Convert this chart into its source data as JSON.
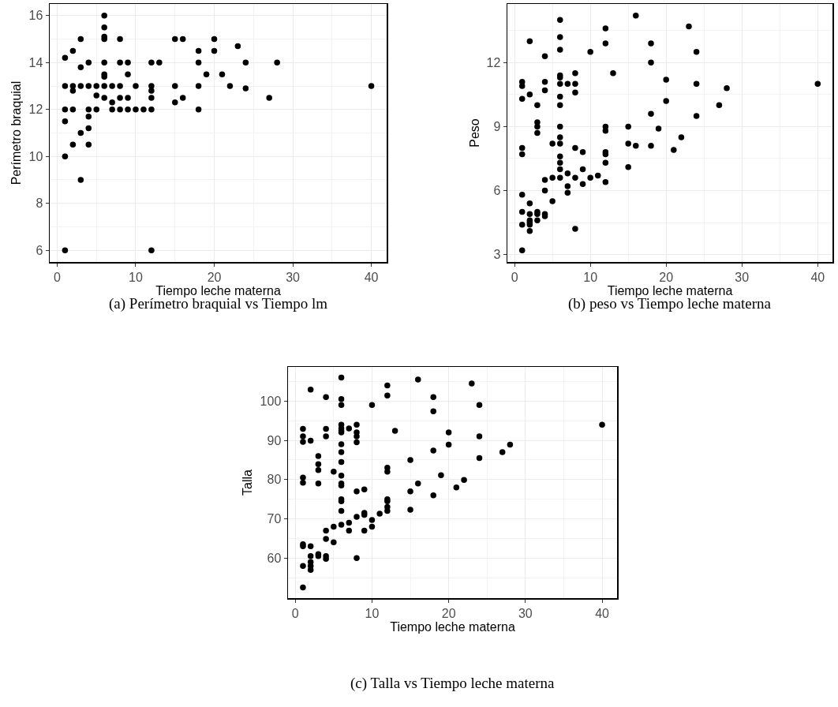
{
  "chart_data": [
    {
      "type": "scatter",
      "xlabel": "Tiempo leche materna",
      "ylabel": "Perímetro braquial",
      "annotations": [
        "(a) Perímetro braquial vs Tiempo lm"
      ],
      "color": "#000000",
      "marker": "circle",
      "grid": true,
      "xlim": [
        -0.95,
        41.95
      ],
      "xticks": [
        0,
        10,
        20,
        30,
        40
      ],
      "ylim": [
        5.5,
        16.5
      ],
      "yticks": [
        6,
        8,
        10,
        12,
        14,
        16
      ],
      "x": [
        1,
        1,
        1,
        1,
        1,
        1,
        2,
        2,
        2,
        2,
        2,
        3,
        3,
        3,
        3,
        3,
        4,
        4,
        4,
        4,
        4,
        4,
        5,
        5,
        5,
        6,
        6,
        6,
        6,
        6,
        6,
        6,
        6,
        6,
        7,
        7,
        7,
        8,
        8,
        8,
        8,
        8,
        9,
        9,
        9,
        9,
        10,
        10,
        11,
        12,
        12,
        12,
        12,
        12,
        12,
        13,
        15,
        15,
        15,
        16,
        16,
        18,
        18,
        18,
        18,
        19,
        20,
        20,
        21,
        22,
        23,
        24,
        24,
        27,
        28,
        40
      ],
      "values": [
        14.2,
        13,
        12,
        11.5,
        10,
        6,
        14.5,
        13,
        12.8,
        12,
        10.5,
        15,
        13.8,
        13,
        11,
        9,
        14,
        13,
        12,
        11.7,
        11.2,
        10.5,
        13,
        12.6,
        12,
        16,
        15.5,
        15.1,
        15,
        14,
        13.5,
        13.4,
        13,
        12.5,
        13,
        12.3,
        12,
        15,
        14,
        13,
        12.5,
        12,
        14,
        13.5,
        12.5,
        12,
        13,
        12,
        12,
        14,
        13,
        12.8,
        12.5,
        12,
        6,
        14,
        15,
        13,
        12.3,
        15,
        12.5,
        14.5,
        14,
        13,
        12,
        13.5,
        15,
        14.5,
        13.5,
        13,
        14.7,
        14,
        12.9,
        12.5,
        14,
        13
      ]
    },
    {
      "type": "scatter",
      "xlabel": "Tiempo leche materna",
      "ylabel": "Peso",
      "annotations": [
        "(b) peso vs Tiempo leche materna"
      ],
      "color": "#000000",
      "marker": "circle",
      "grid": true,
      "xlim": [
        -0.95,
        41.95
      ],
      "xticks": [
        0,
        10,
        20,
        30,
        40
      ],
      "ylim": [
        2.65,
        14.75
      ],
      "yticks": [
        3,
        6,
        9,
        12
      ],
      "x": [
        1,
        1,
        1,
        1,
        1,
        1,
        1,
        1,
        1,
        2,
        2,
        2,
        2,
        2,
        2,
        2,
        2,
        3,
        3,
        3,
        3,
        3,
        3,
        3,
        4,
        4,
        4,
        4,
        4,
        4,
        4,
        5,
        5,
        5,
        6,
        6,
        6,
        6,
        6,
        6,
        6,
        6,
        6,
        6,
        6,
        6,
        6,
        6,
        6,
        7,
        7,
        7,
        7,
        8,
        8,
        8,
        8,
        8,
        8,
        9,
        9,
        9,
        10,
        10,
        11,
        12,
        12,
        12,
        12,
        12,
        12,
        12,
        12,
        13,
        15,
        15,
        15,
        16,
        16,
        18,
        18,
        18,
        18,
        19,
        20,
        20,
        21,
        22,
        23,
        24,
        24,
        24,
        27,
        28,
        40
      ],
      "values": [
        11.1,
        10.9,
        10.3,
        8.0,
        7.7,
        5.8,
        5.0,
        4.4,
        3.2,
        13.0,
        10.5,
        5.4,
        4.9,
        4.6,
        4.5,
        4.4,
        4.1,
        10.0,
        9.2,
        9.0,
        8.7,
        5.0,
        4.9,
        4.6,
        12.3,
        11.1,
        10.7,
        6.5,
        6.0,
        4.9,
        4.8,
        8.2,
        6.6,
        5.5,
        14.0,
        13.2,
        12.6,
        11.4,
        11.3,
        11.0,
        10.4,
        10.0,
        9.0,
        8.5,
        8.2,
        7.6,
        7.3,
        7.0,
        6.6,
        11.0,
        6.8,
        6.2,
        5.9,
        11.5,
        11.0,
        10.6,
        8.0,
        6.6,
        4.2,
        7.8,
        7.0,
        6.3,
        12.5,
        6.6,
        6.7,
        13.6,
        12.9,
        9.0,
        8.8,
        7.8,
        7.7,
        7.3,
        6.4,
        11.5,
        9.0,
        8.2,
        7.1,
        14.2,
        8.1,
        12.9,
        12.0,
        9.6,
        8.1,
        8.9,
        11.2,
        10.2,
        7.9,
        8.5,
        13.7,
        12.5,
        11.0,
        9.5,
        10.0,
        10.8,
        11.0
      ]
    },
    {
      "type": "scatter",
      "xlabel": "Tiempo leche materna",
      "ylabel": "Talla",
      "annotations": [
        "(c) Talla vs Tiempo leche materna"
      ],
      "color": "#000000",
      "marker": "circle",
      "grid": true,
      "xlim": [
        -0.95,
        41.95
      ],
      "xticks": [
        0,
        10,
        20,
        30,
        40
      ],
      "ylim": [
        49.8,
        108.7
      ],
      "yticks": [
        60,
        70,
        80,
        90,
        100
      ],
      "x": [
        1,
        1,
        1,
        1,
        1,
        1,
        1,
        1,
        1,
        2,
        2,
        2,
        2,
        2,
        2,
        2,
        3,
        3,
        3,
        3,
        3,
        3,
        4,
        4,
        4,
        4,
        4,
        4,
        4,
        5,
        5,
        5,
        6,
        6,
        6,
        6,
        6,
        6,
        6,
        6,
        6,
        6,
        6,
        6,
        6,
        6,
        6,
        6,
        6,
        7,
        7,
        7,
        8,
        8,
        8,
        8,
        8,
        8,
        8,
        9,
        9,
        9,
        9,
        10,
        10,
        10,
        11,
        12,
        12,
        12,
        12,
        12,
        12,
        12,
        12,
        13,
        15,
        15,
        15,
        16,
        16,
        18,
        18,
        18,
        18,
        19,
        20,
        20,
        21,
        22,
        23,
        24,
        24,
        24,
        27,
        28,
        40
      ],
      "values": [
        92.9,
        91.0,
        89.6,
        80.5,
        79.2,
        63.5,
        63.0,
        58.0,
        52.5,
        102.9,
        89.9,
        63.0,
        60.5,
        59.0,
        58.0,
        57.0,
        86.0,
        83.9,
        82.4,
        79.0,
        61.0,
        60.5,
        101.0,
        92.9,
        91.0,
        67.0,
        64.9,
        60.5,
        59.8,
        82.0,
        68.0,
        64.0,
        106,
        100.5,
        99,
        94,
        93,
        92.4,
        92,
        89,
        87,
        84.5,
        81,
        79,
        78.5,
        75,
        74.5,
        72,
        68.5,
        93.0,
        69.0,
        67.0,
        94.0,
        92.0,
        91.0,
        89.5,
        77.0,
        70.5,
        60.0,
        77.5,
        71.5,
        71.0,
        67.0,
        99.0,
        69.7,
        68.0,
        71.3,
        104,
        101.4,
        83.0,
        82.0,
        75.0,
        74.5,
        73.0,
        72.0,
        92.4,
        85.0,
        77.0,
        72.3,
        105.5,
        79.0,
        101.0,
        97.4,
        87.4,
        76.0,
        81.1,
        92.0,
        88.9,
        78.0,
        79.9,
        104.5,
        99.0,
        91.0,
        85.5,
        87.0,
        88.9,
        94
      ]
    }
  ]
}
